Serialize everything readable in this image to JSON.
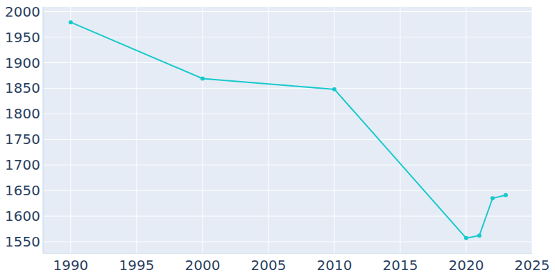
{
  "chart_data": {
    "type": "line",
    "x": [
      1990,
      2000,
      2010,
      2020,
      2021,
      2022,
      2023
    ],
    "values": [
      1979,
      1869,
      1848,
      1557,
      1562,
      1635,
      1641
    ],
    "color": "#17c9cc",
    "marker": "circle",
    "xlim": [
      1987.9,
      2025
    ],
    "xticks": [
      1990,
      1995,
      2000,
      2005,
      2010,
      2015,
      2020,
      2025
    ],
    "ylim": [
      1527,
      2009
    ],
    "yticks": [
      1550,
      1600,
      1650,
      1700,
      1750,
      1800,
      1850,
      1900,
      1950,
      2000
    ],
    "grid": true
  }
}
